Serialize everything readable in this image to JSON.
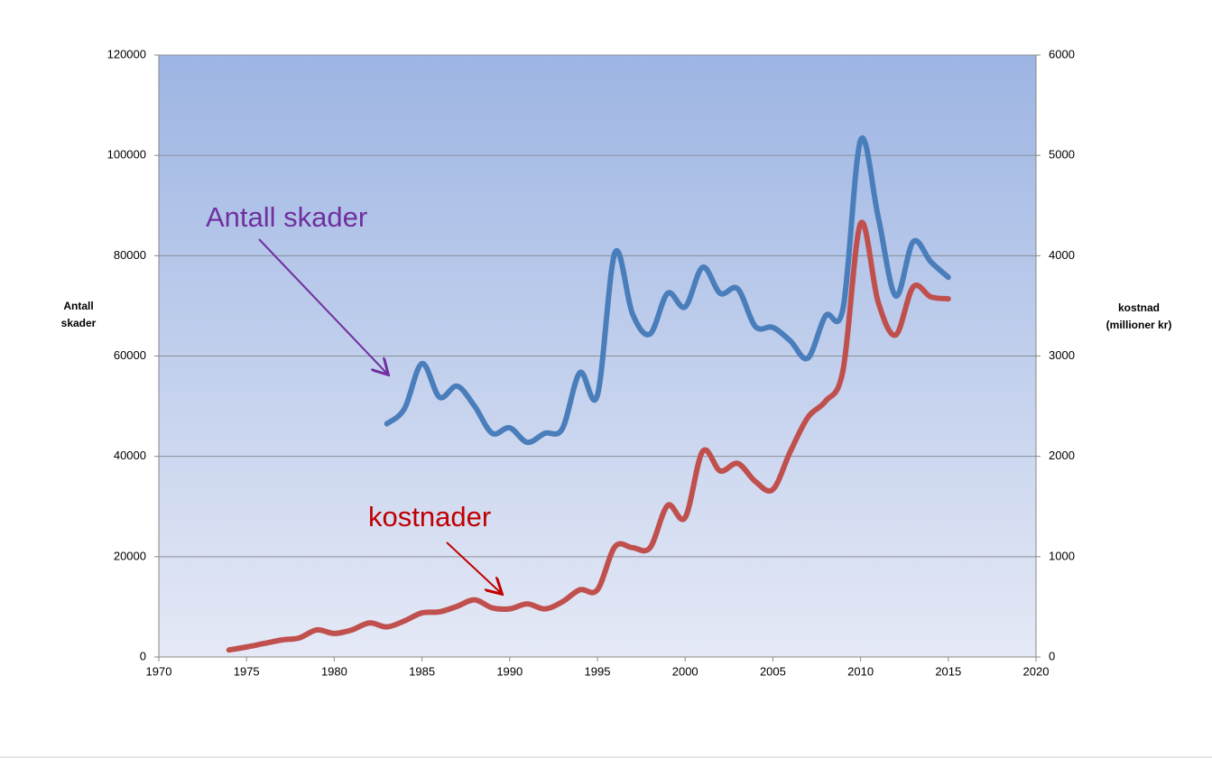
{
  "chart_data": {
    "type": "line",
    "y_label": "Antall skader",
    "y2_label": "kostnad (millioner kr)",
    "annotations": [
      "Antall skader",
      "kostnader"
    ],
    "xlim": [
      1970,
      2020
    ],
    "xticks": [
      1970,
      1975,
      1980,
      1985,
      1990,
      1995,
      2000,
      2005,
      2010,
      2015,
      2020
    ],
    "ylim": [
      0,
      120000
    ],
    "yticks": [
      0,
      20000,
      40000,
      60000,
      80000,
      100000,
      120000
    ],
    "y2lim": [
      0,
      6000
    ],
    "y2ticks": [
      0,
      1000,
      2000,
      3000,
      4000,
      5000,
      6000
    ],
    "grid": true,
    "series": [
      {
        "color": "#4a7ebb",
        "x": [
          1983,
          1984,
          1985,
          1986,
          1987,
          1988,
          1989,
          1990,
          1991,
          1992,
          1993,
          1994,
          1995,
          1996,
          1997,
          1998,
          1999,
          2000,
          2001,
          2002,
          2003,
          2004,
          2005,
          2006,
          2007,
          2008,
          2009,
          2010,
          2011,
          2012,
          2013,
          2014,
          2015
        ],
        "values": [
          46500,
          49500,
          58500,
          51800,
          54000,
          50000,
          44600,
          45700,
          42800,
          44600,
          45500,
          56700,
          52200,
          80600,
          68400,
          64400,
          72500,
          69800,
          77700,
          72500,
          73400,
          65900,
          65700,
          63000,
          59600,
          68000,
          69500,
          103000,
          87800,
          72000,
          82800,
          78800,
          75700
        ]
      },
      {
        "color": "#c0504d",
        "axis": "y2",
        "x": [
          1974,
          1975,
          1976,
          1977,
          1978,
          1979,
          1980,
          1981,
          1982,
          1983,
          1984,
          1985,
          1986,
          1987,
          1988,
          1989,
          1990,
          1991,
          1992,
          1993,
          1994,
          1995,
          1996,
          1997,
          1998,
          1999,
          2000,
          2001,
          2002,
          2003,
          2004,
          2005,
          2006,
          2007,
          2008,
          2009,
          2010,
          2011,
          2012,
          2013,
          2014,
          2015
        ],
        "values": [
          70,
          100,
          135,
          170,
          190,
          270,
          235,
          270,
          340,
          300,
          360,
          440,
          450,
          505,
          570,
          490,
          480,
          530,
          480,
          550,
          670,
          670,
          1100,
          1090,
          1090,
          1510,
          1390,
          2050,
          1855,
          1930,
          1750,
          1670,
          2050,
          2390,
          2550,
          2860,
          4320,
          3540,
          3210,
          3690,
          3590,
          3570
        ]
      }
    ]
  }
}
